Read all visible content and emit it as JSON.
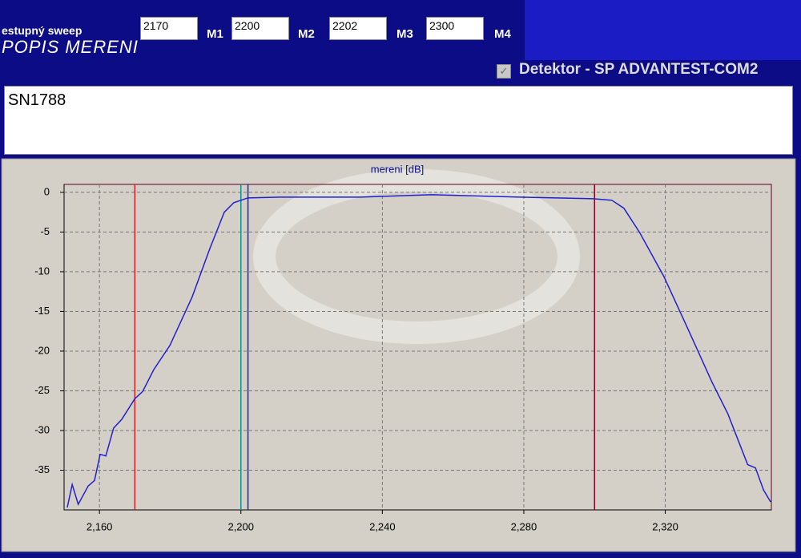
{
  "ui": {
    "sweep_label": "estupný sweep",
    "section_title": "POPIS MERENI",
    "checkbox_label": "Detektor - SP ADVANTEST-COM2",
    "description": "SN1788"
  },
  "chart_data": {
    "type": "line",
    "title": "mereni [dB]",
    "x": [
      2150.9,
      2152.3,
      2154,
      2156.8,
      2158.6,
      2160.2,
      2161.8,
      2164,
      2166.3,
      2170,
      2172.2,
      2175.4,
      2179.9,
      2186.2,
      2191.2,
      2195.3,
      2198,
      2202,
      2211,
      2233.6,
      2254,
      2278.9,
      2299.7,
      2304.9,
      2308.3,
      2312.8,
      2319.6,
      2326.4,
      2333.1,
      2337.7,
      2343.3,
      2345.5,
      2347.8,
      2349.8
    ],
    "series": [
      {
        "color": "#2020d0",
        "values": [
          -39.7,
          -36.8,
          -39.3,
          -37,
          -36.3,
          -33,
          -33.2,
          -29.7,
          -28.6,
          -26,
          -25.1,
          -22.3,
          -19.3,
          -13.2,
          -7.1,
          -2.5,
          -1.3,
          -0.7,
          -0.6,
          -0.6,
          -0.3,
          -0.6,
          -0.8,
          -1,
          -2,
          -5.1,
          -10.6,
          -17.2,
          -23.8,
          -27.9,
          -34.3,
          -34.7,
          -37.5,
          -39
        ]
      }
    ],
    "xlim": [
      2150,
      2350
    ],
    "ylim": [
      -40,
      1
    ],
    "xticks": [
      {
        "value": 2160,
        "label": "2,160"
      },
      {
        "value": 2200,
        "label": "2,200"
      },
      {
        "value": 2240,
        "label": "2,240"
      },
      {
        "value": 2280,
        "label": "2,280"
      },
      {
        "value": 2320,
        "label": "2,320"
      }
    ],
    "yticks": [
      0,
      -5,
      -10,
      -15,
      -20,
      -25,
      -30,
      -35
    ],
    "grid": true,
    "markers": [
      {
        "label": "M1",
        "value": 2170,
        "color": "#e02020"
      },
      {
        "label": "M2",
        "value": 2200,
        "color": "#109090"
      },
      {
        "label": "M3",
        "value": 2202,
        "color": "#2020c0"
      },
      {
        "label": "M4",
        "value": 2300,
        "color": "#900020"
      }
    ]
  }
}
